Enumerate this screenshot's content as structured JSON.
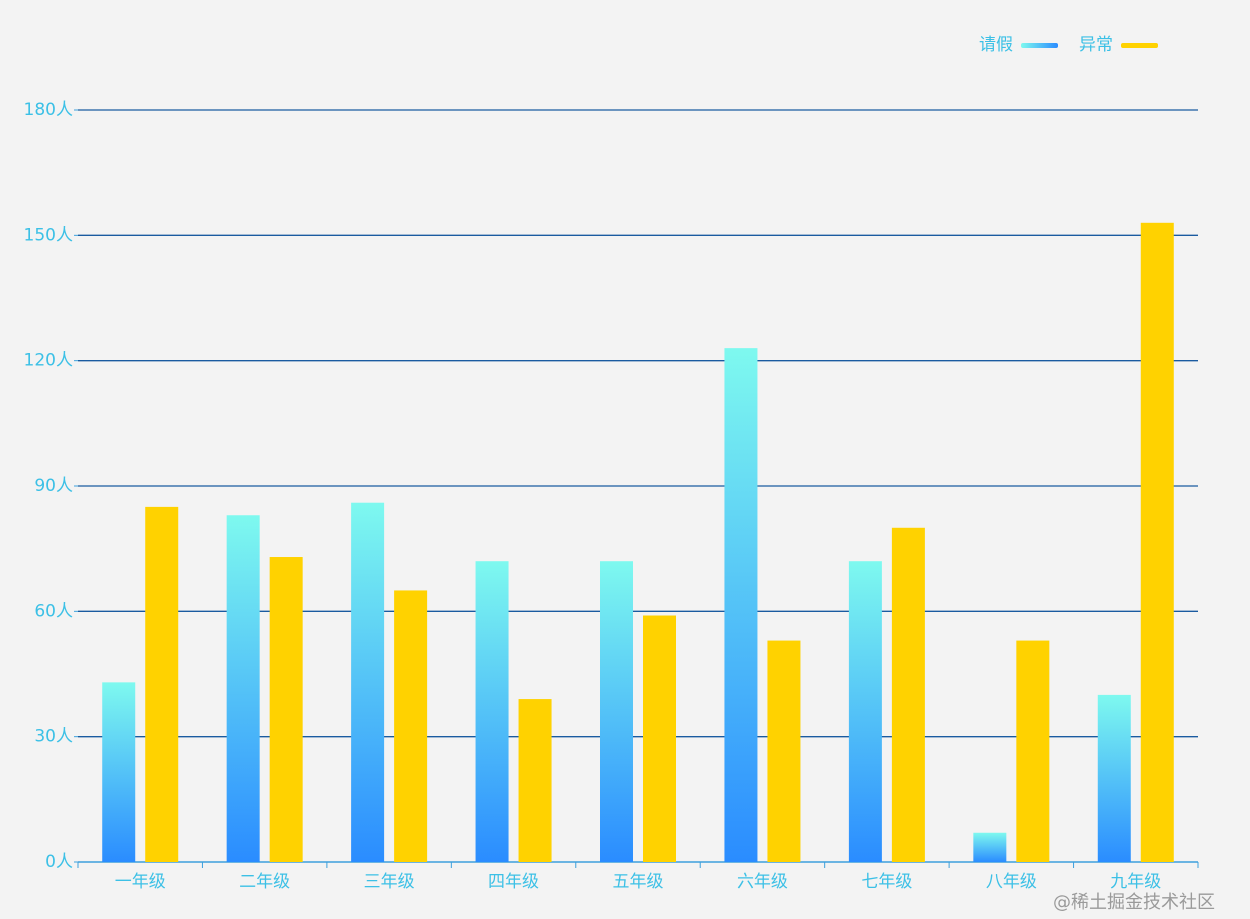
{
  "chart_data": {
    "type": "bar",
    "categories": [
      "一年级",
      "二年级",
      "三年级",
      "四年级",
      "五年级",
      "六年级",
      "七年级",
      "八年级",
      "九年级"
    ],
    "series": [
      {
        "name": "请假",
        "color": [
          "#7ef9ef",
          "#2a8cff"
        ],
        "values": [
          43,
          83,
          86,
          72,
          72,
          123,
          72,
          7,
          40
        ]
      },
      {
        "name": "异常",
        "color": "#ffd200",
        "values": [
          85,
          73,
          65,
          39,
          59,
          53,
          80,
          53,
          153
        ]
      }
    ],
    "ylim": [
      0,
      180
    ],
    "yticks": [
      {
        "value": 0,
        "label": "0人"
      },
      {
        "value": 30,
        "label": "30人"
      },
      {
        "value": 60,
        "label": "60人"
      },
      {
        "value": 90,
        "label": "90人"
      },
      {
        "value": 120,
        "label": "120人"
      },
      {
        "value": 150,
        "label": "150人"
      },
      {
        "value": 180,
        "label": "180人"
      }
    ],
    "grid": true,
    "legend": "top-right",
    "watermark": "@稀土掘金技术社区"
  }
}
